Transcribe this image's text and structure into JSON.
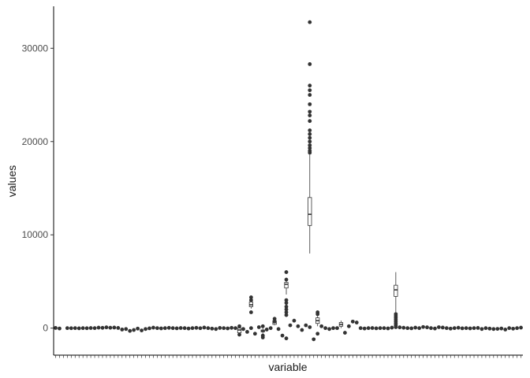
{
  "chart_data": {
    "type": "boxplot",
    "xlabel": "variable",
    "ylabel": "values",
    "ylim": [
      -2900,
      34500
    ],
    "yticks": [
      0,
      10000,
      20000,
      30000
    ],
    "grid": false,
    "legend": "none",
    "n_categories": 120,
    "colors": {
      "points": "#333333",
      "box": "#333333",
      "background": "#ffffff"
    },
    "baseline_points": [
      {
        "i": 0,
        "v": 20
      },
      {
        "i": 1,
        "v": -40
      },
      {
        "i": 3,
        "v": 0
      },
      {
        "i": 4,
        "v": -10
      },
      {
        "i": 5,
        "v": 0
      },
      {
        "i": 6,
        "v": -20
      },
      {
        "i": 7,
        "v": 0
      },
      {
        "i": 8,
        "v": -10
      },
      {
        "i": 9,
        "v": 10
      },
      {
        "i": 10,
        "v": 0
      },
      {
        "i": 11,
        "v": 50
      },
      {
        "i": 12,
        "v": 30
      },
      {
        "i": 13,
        "v": 80
      },
      {
        "i": 14,
        "v": 40
      },
      {
        "i": 15,
        "v": 60
      },
      {
        "i": 16,
        "v": 20
      },
      {
        "i": 17,
        "v": -150
      },
      {
        "i": 18,
        "v": -100
      },
      {
        "i": 19,
        "v": -300
      },
      {
        "i": 20,
        "v": -200
      },
      {
        "i": 21,
        "v": -50
      },
      {
        "i": 22,
        "v": -250
      },
      {
        "i": 23,
        "v": -100
      },
      {
        "i": 24,
        "v": -20
      },
      {
        "i": 25,
        "v": 50
      },
      {
        "i": 26,
        "v": 0
      },
      {
        "i": 27,
        "v": -30
      },
      {
        "i": 28,
        "v": 0
      },
      {
        "i": 29,
        "v": 30
      },
      {
        "i": 30,
        "v": 0
      },
      {
        "i": 31,
        "v": -20
      },
      {
        "i": 32,
        "v": 10
      },
      {
        "i": 33,
        "v": 0
      },
      {
        "i": 34,
        "v": -40
      },
      {
        "i": 35,
        "v": 0
      },
      {
        "i": 36,
        "v": 30
      },
      {
        "i": 37,
        "v": -10
      },
      {
        "i": 38,
        "v": 60
      },
      {
        "i": 39,
        "v": 0
      },
      {
        "i": 40,
        "v": -50
      },
      {
        "i": 41,
        "v": -100
      },
      {
        "i": 42,
        "v": 20
      },
      {
        "i": 43,
        "v": 0
      },
      {
        "i": 44,
        "v": -30
      },
      {
        "i": 45,
        "v": 30
      },
      {
        "i": 46,
        "v": 0
      },
      {
        "i": 48,
        "v": -100
      },
      {
        "i": 49,
        "v": -400
      },
      {
        "i": 50,
        "v": 0
      },
      {
        "i": 51,
        "v": -600
      },
      {
        "i": 52,
        "v": 100
      },
      {
        "i": 53,
        "v": 200
      },
      {
        "i": 54,
        "v": -150
      },
      {
        "i": 55,
        "v": 0
      },
      {
        "i": 57,
        "v": -100
      },
      {
        "i": 58,
        "v": -800
      },
      {
        "i": 59,
        "v": -1100
      },
      {
        "i": 60,
        "v": 300
      },
      {
        "i": 61,
        "v": 800
      },
      {
        "i": 62,
        "v": 200
      },
      {
        "i": 63,
        "v": -200
      },
      {
        "i": 64,
        "v": 300
      },
      {
        "i": 65,
        "v": 100
      },
      {
        "i": 66,
        "v": -1200
      },
      {
        "i": 67,
        "v": -600
      },
      {
        "i": 68,
        "v": 200
      },
      {
        "i": 69,
        "v": 0
      },
      {
        "i": 70,
        "v": -100
      },
      {
        "i": 71,
        "v": 0
      },
      {
        "i": 72,
        "v": 0
      },
      {
        "i": 74,
        "v": -500
      },
      {
        "i": 75,
        "v": 200
      },
      {
        "i": 76,
        "v": 700
      },
      {
        "i": 77,
        "v": 600
      },
      {
        "i": 78,
        "v": 0
      },
      {
        "i": 79,
        "v": -40
      },
      {
        "i": 80,
        "v": 0
      },
      {
        "i": 81,
        "v": 10
      },
      {
        "i": 82,
        "v": -20
      },
      {
        "i": 83,
        "v": 0
      },
      {
        "i": 84,
        "v": 0
      },
      {
        "i": 85,
        "v": -30
      },
      {
        "i": 86,
        "v": 50
      },
      {
        "i": 87,
        "v": 100
      },
      {
        "i": 88,
        "v": 80
      },
      {
        "i": 89,
        "v": 40
      },
      {
        "i": 90,
        "v": 0
      },
      {
        "i": 91,
        "v": -20
      },
      {
        "i": 92,
        "v": 50
      },
      {
        "i": 93,
        "v": 0
      },
      {
        "i": 94,
        "v": 120
      },
      {
        "i": 95,
        "v": 80
      },
      {
        "i": 96,
        "v": 0
      },
      {
        "i": 97,
        "v": -40
      },
      {
        "i": 98,
        "v": 100
      },
      {
        "i": 99,
        "v": 60
      },
      {
        "i": 100,
        "v": 0
      },
      {
        "i": 101,
        "v": -50
      },
      {
        "i": 102,
        "v": 0
      },
      {
        "i": 103,
        "v": 40
      },
      {
        "i": 104,
        "v": -20
      },
      {
        "i": 105,
        "v": 0
      },
      {
        "i": 106,
        "v": -30
      },
      {
        "i": 107,
        "v": 0
      },
      {
        "i": 108,
        "v": 20
      },
      {
        "i": 109,
        "v": -100
      },
      {
        "i": 110,
        "v": 0
      },
      {
        "i": 111,
        "v": -50
      },
      {
        "i": 112,
        "v": -100
      },
      {
        "i": 113,
        "v": -80
      },
      {
        "i": 114,
        "v": -40
      },
      {
        "i": 115,
        "v": -150
      },
      {
        "i": 116,
        "v": 0
      },
      {
        "i": 117,
        "v": -60
      },
      {
        "i": 118,
        "v": 0
      },
      {
        "i": 119,
        "v": 50
      }
    ],
    "boxes": [
      {
        "i": 47,
        "q1": -500,
        "median": -200,
        "q3": 0,
        "whisker_low": -700,
        "whisker_high": 300,
        "outliers": [
          -700,
          200
        ]
      },
      {
        "i": 50,
        "q1": 2300,
        "median": 2500,
        "q3": 2800,
        "whisker_low": 2100,
        "whisker_high": 3000,
        "outliers": [
          3300,
          3000,
          1700
        ]
      },
      {
        "i": 53,
        "q1": -400,
        "median": -300,
        "q3": -200,
        "whisker_low": -600,
        "whisker_high": 0,
        "outliers": [
          -800,
          -1000
        ]
      },
      {
        "i": 56,
        "q1": 400,
        "median": 600,
        "q3": 800,
        "whisker_low": 300,
        "whisker_high": 900,
        "outliers": [
          1000,
          700
        ]
      },
      {
        "i": 59,
        "q1": 4300,
        "median": 4700,
        "q3": 4900,
        "whisker_low": 3600,
        "whisker_high": 5300,
        "outliers": [
          6000,
          5200,
          3000,
          2700,
          2300,
          2000,
          1700,
          1400
        ]
      },
      {
        "i": 65,
        "q1": 11000,
        "median": 12200,
        "q3": 14000,
        "whisker_low": 8000,
        "whisker_high": 18600,
        "outliers": [
          32800,
          28300,
          26000,
          25500,
          25000,
          24000,
          23200,
          22800,
          22200,
          21200,
          20800,
          20400,
          20000,
          19600,
          19300,
          19000,
          18800
        ]
      },
      {
        "i": 67,
        "q1": 500,
        "median": 800,
        "q3": 1100,
        "whisker_low": 200,
        "whisker_high": 1300,
        "outliers": [
          1700,
          1500
        ]
      },
      {
        "i": 73,
        "q1": 200,
        "median": 400,
        "q3": 600,
        "whisker_low": 0,
        "whisker_high": 800,
        "outliers": []
      },
      {
        "i": 87,
        "q1": 3400,
        "median": 4100,
        "q3": 4600,
        "whisker_low": 1600,
        "whisker_high": 6000,
        "outliers": [
          1500,
          1300,
          1100,
          900,
          700,
          500,
          300
        ]
      }
    ]
  }
}
